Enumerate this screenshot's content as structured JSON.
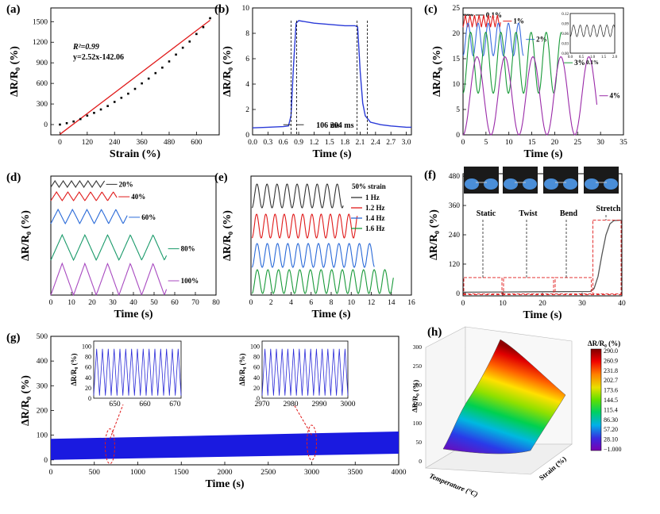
{
  "chart_data": [
    {
      "id": "a",
      "panel_label": "(a)",
      "type": "scatter",
      "xlabel": "Strain (%)",
      "ylabel": "ΔR/R₀ (%)",
      "xlim": [
        -40,
        700
      ],
      "ylim": [
        -150,
        1700
      ],
      "x_ticks": [
        0,
        120,
        240,
        360,
        480,
        600
      ],
      "y_ticks": [
        0,
        300,
        600,
        900,
        1200,
        1500
      ],
      "x_tick_labels": [
        "0",
        "120",
        "240",
        "360",
        "480",
        "600"
      ],
      "y_tick_labels": [
        "0",
        "300",
        "600",
        "900",
        "1200",
        "1500"
      ],
      "points_x": [
        0,
        30,
        60,
        90,
        120,
        150,
        180,
        210,
        240,
        270,
        300,
        330,
        360,
        390,
        420,
        450,
        480,
        510,
        540,
        570,
        600,
        630,
        660
      ],
      "points_y": [
        0,
        20,
        45,
        80,
        130,
        170,
        220,
        270,
        330,
        390,
        450,
        520,
        600,
        670,
        750,
        830,
        920,
        1020,
        1120,
        1210,
        1320,
        1420,
        1550
      ],
      "fit": {
        "slope": 2.52,
        "intercept": -142.06,
        "x_range": [
          0,
          660
        ]
      },
      "annotation_r2": "R²=0.99",
      "annotation_eq": "y=2.52x-142.06"
    },
    {
      "id": "b",
      "panel_label": "(b)",
      "type": "line",
      "xlabel": "Time (s)",
      "ylabel": "ΔR/R₀ (%)",
      "xlim": [
        0,
        3.1
      ],
      "ylim": [
        0,
        10
      ],
      "x_ticks": [
        0,
        0.3,
        0.6,
        0.9,
        1.2,
        1.5,
        1.8,
        2.1,
        2.4,
        2.7,
        3.0
      ],
      "x_tick_labels": [
        "0.0",
        "0.3",
        "0.6",
        "0.9",
        "1.2",
        "1.5",
        "1.8",
        "2.1",
        "2.4",
        "2.7",
        "3.0"
      ],
      "y_ticks": [
        0,
        2,
        4,
        6,
        8,
        10
      ],
      "y_tick_labels": [
        "0",
        "2",
        "4",
        "6",
        "8",
        "10"
      ],
      "x": [
        0,
        0.3,
        0.6,
        0.7,
        0.75,
        0.8,
        0.85,
        0.9,
        1.2,
        1.5,
        1.8,
        2.0,
        2.05,
        2.1,
        2.15,
        2.2,
        2.3,
        2.5,
        2.7,
        3.0,
        3.1
      ],
      "y": [
        0.55,
        0.6,
        0.65,
        0.7,
        1.5,
        5.5,
        8.8,
        9.0,
        8.8,
        8.7,
        8.6,
        8.6,
        8.5,
        5.0,
        2.5,
        1.5,
        1.0,
        0.8,
        0.7,
        0.6,
        0.6
      ],
      "markers_x": [
        0.75,
        0.86,
        2.04,
        2.24
      ],
      "response_label": "106 ms",
      "recovery_label": "204 ms"
    },
    {
      "id": "c",
      "panel_label": "(c)",
      "type": "line",
      "xlabel": "Time (s)",
      "ylabel": "ΔR/R₀ (%)",
      "xlim": [
        0,
        35
      ],
      "ylim": [
        0,
        25
      ],
      "x_ticks": [
        0,
        5,
        10,
        15,
        20,
        25,
        30,
        35
      ],
      "x_tick_labels": [
        "0",
        "5",
        "10",
        "15",
        "20",
        "25",
        "30",
        "35"
      ],
      "y_ticks": [
        0,
        5,
        10,
        15,
        20,
        25
      ],
      "y_tick_labels": [
        "0",
        "5",
        "10",
        "15",
        "20",
        "25"
      ],
      "series": [
        {
          "name": "0.1%",
          "offset": 23.5,
          "amp": 0.1,
          "period": 0.4,
          "t_end": 2.2,
          "color": "#222222"
        },
        {
          "name": "1%",
          "offset": 21.2,
          "amp": 1.2,
          "period": 1.0,
          "t_end": 8.2,
          "color": "#e01a1a"
        },
        {
          "name": "2%",
          "offset": 15.6,
          "amp": 3.2,
          "period": 2.2,
          "t_end": 13.2,
          "color": "#3c6ee0"
        },
        {
          "name": "3%",
          "offset": 8.2,
          "amp": 6.0,
          "period": 3.3,
          "t_end": 21.5,
          "color": "#1a9a3a"
        },
        {
          "name": "4%",
          "offset": 0.0,
          "amp": 7.7,
          "period": 6.1,
          "t_end": 29.2,
          "color": "#9a2aa8"
        }
      ],
      "inset": {
        "xlabel": "0.1%",
        "xlim": [
          0,
          2.0
        ],
        "ylim": [
          0,
          0.12
        ],
        "x_ticks": [
          0,
          0.5,
          1.0,
          1.5,
          2.0
        ],
        "x_tick_labels": [
          "0.0",
          "0.5",
          "1.0",
          "1.5",
          "2.0"
        ],
        "y_ticks": [
          0,
          0.03,
          0.06,
          0.09,
          0.12
        ],
        "y_tick_labels": [
          "0.00",
          "0.03",
          "0.06",
          "0.09",
          "0.12"
        ]
      }
    },
    {
      "id": "d",
      "panel_label": "(d)",
      "type": "line",
      "xlabel": "Time (s)",
      "ylabel": "ΔR/R₀ (%)",
      "xlim": [
        0,
        80
      ],
      "x_ticks": [
        0,
        10,
        20,
        30,
        40,
        50,
        60,
        70,
        80
      ],
      "x_tick_labels": [
        "0",
        "10",
        "20",
        "30",
        "40",
        "50",
        "60",
        "70",
        "80"
      ],
      "series": [
        {
          "name": "20%",
          "level": 0,
          "period": 4.0,
          "t_end": 26,
          "color": "#333333"
        },
        {
          "name": "40%",
          "level": 1,
          "period": 5.5,
          "t_end": 32,
          "color": "#e01a1a"
        },
        {
          "name": "60%",
          "level": 2,
          "period": 7.0,
          "t_end": 37,
          "color": "#2a6ad8"
        },
        {
          "name": "80%",
          "level": 3,
          "period": 11.0,
          "t_end": 56,
          "color": "#1a9a6a"
        },
        {
          "name": "100%",
          "level": 4,
          "period": 11.0,
          "t_end": 56,
          "color": "#a84ac0"
        }
      ]
    },
    {
      "id": "e",
      "panel_label": "(e)",
      "type": "line",
      "xlabel": "Time (s)",
      "ylabel": "ΔR/R₀ (%)",
      "xlim": [
        0,
        16
      ],
      "x_ticks": [
        0,
        2,
        4,
        6,
        8,
        10,
        12,
        14,
        16
      ],
      "x_tick_labels": [
        "0",
        "2",
        "4",
        "6",
        "8",
        "10",
        "12",
        "14",
        "16"
      ],
      "legend_title": "50% strain",
      "series": [
        {
          "name": "1 Hz",
          "level": 0,
          "period": 1.0,
          "t_end": 9.2,
          "color": "#333333"
        },
        {
          "name": "1.2 Hz",
          "level": 1,
          "period": 0.92,
          "t_end": 10.6,
          "color": "#e01a1a"
        },
        {
          "name": "1.4 Hz",
          "level": 2,
          "period": 1.02,
          "t_end": 12.3,
          "color": "#2a6ad8"
        },
        {
          "name": "1.6 Hz",
          "level": 3,
          "period": 1.06,
          "t_end": 14.2,
          "color": "#1a9a3a"
        }
      ]
    },
    {
      "id": "f",
      "panel_label": "(f)",
      "type": "line",
      "xlabel": "Time (s)",
      "ylabel": "ΔR/R₀ (%)",
      "xlim": [
        0,
        40
      ],
      "ylim": [
        -10,
        490
      ],
      "x_ticks": [
        0,
        10,
        20,
        30,
        40
      ],
      "x_tick_labels": [
        "0",
        "10",
        "20",
        "30",
        "40"
      ],
      "y_ticks": [
        0,
        120,
        240,
        360,
        480
      ],
      "y_tick_labels": [
        "0",
        "120",
        "240",
        "360",
        "480"
      ],
      "x": [
        0,
        10,
        20,
        32,
        33,
        34,
        35,
        36,
        37,
        38,
        40
      ],
      "y": [
        5,
        6,
        7,
        8,
        20,
        70,
        160,
        240,
        285,
        298,
        300
      ],
      "states": [
        "Static",
        "Twist",
        "Bend",
        "Stretch"
      ]
    },
    {
      "id": "g",
      "panel_label": "(g)",
      "type": "line",
      "xlabel": "Time (s)",
      "ylabel": "ΔR/R₀ (%)",
      "xlim": [
        0,
        4000
      ],
      "ylim": [
        -20,
        500
      ],
      "x_ticks": [
        0,
        500,
        1000,
        1500,
        2000,
        2500,
        3000,
        3500,
        4000
      ],
      "x_tick_labels": [
        "0",
        "500",
        "1000",
        "1500",
        "2000",
        "2500",
        "3000",
        "3500",
        "4000"
      ],
      "y_ticks": [
        0,
        100,
        200,
        300,
        400,
        500
      ],
      "y_tick_labels": [
        "0",
        "100",
        "200",
        "300",
        "400",
        "500"
      ],
      "band_low": [
        0,
        25
      ],
      "band_high": [
        85,
        115
      ],
      "inset1": {
        "xlim": [
          643,
          672
        ],
        "x_ticks": [
          650,
          660,
          670
        ],
        "x_tick_labels": [
          "650",
          "660",
          "670"
        ],
        "y_ticks": [
          0,
          20,
          40,
          60,
          80,
          100
        ],
        "y_tick_labels": [
          "0",
          "20",
          "40",
          "60",
          "80",
          "100"
        ],
        "ylabel": "ΔR/R₀ (%)"
      },
      "inset2": {
        "xlim": [
          2970,
          3000
        ],
        "x_ticks": [
          2970,
          2980,
          2990,
          3000
        ],
        "x_tick_labels": [
          "2970",
          "2980",
          "2990",
          "3000"
        ],
        "y_ticks": [
          0,
          20,
          40,
          60,
          80,
          100
        ],
        "y_tick_labels": [
          "0",
          "20",
          "40",
          "60",
          "80",
          "100"
        ],
        "ylabel": "ΔR/R₀ (%)"
      }
    },
    {
      "id": "h",
      "panel_label": "(h)",
      "type": "heatmap",
      "xlabel": "Temperature (°C)",
      "ylabel": "Strain (%)",
      "zlabel": "ΔR/R₀ (%)",
      "z_ticks": [
        "0",
        "50",
        "100",
        "150",
        "200",
        "250",
        "300"
      ],
      "colorbar_title": "ΔR/R₀ (%)",
      "colorbar_labels": [
        "290.0",
        "260.9",
        "231.8",
        "202.7",
        "173.6",
        "144.5",
        "115.4",
        "86.30",
        "57.20",
        "28.10",
        "−1.000"
      ]
    }
  ]
}
